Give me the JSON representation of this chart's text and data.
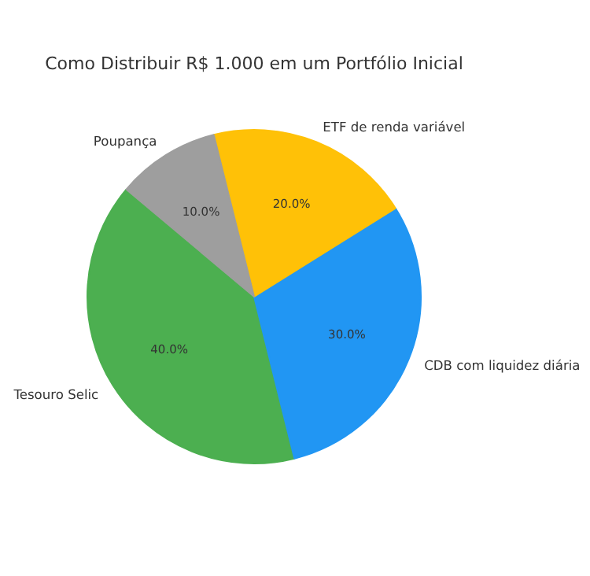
{
  "chart_data": {
    "type": "pie",
    "title": "Como Distribuir R$ 1.000 em um Portfólio Inicial",
    "categories": [
      "Tesouro Selic",
      "CDB com liquidez diária",
      "ETF de renda variável",
      "Poupança"
    ],
    "values": [
      40,
      30,
      20,
      10
    ],
    "colors": [
      "#4caf50",
      "#2196f3",
      "#ffc107",
      "#9e9e9e"
    ],
    "value_labels": [
      "40.0%",
      "30.0%",
      "20.0%",
      "10.0%"
    ]
  }
}
